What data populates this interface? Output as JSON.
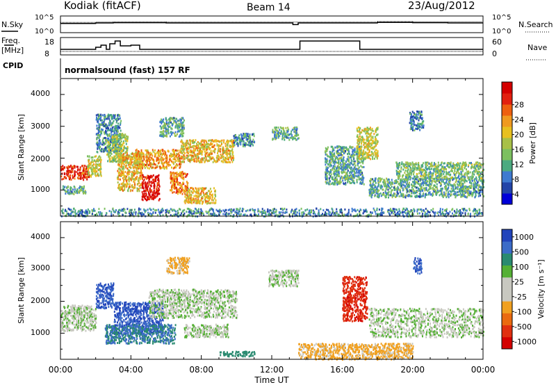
{
  "header": {
    "station": "Kodiak (fitACF)",
    "beam": "Beam 14",
    "date": "23/Aug/2012"
  },
  "summary": {
    "nsky_label": "N.Sky",
    "nsearch_label": "N.Search",
    "noise_ticks": [
      "10^5",
      "10^0"
    ],
    "freq_label_top": "Freq.",
    "freq_label_bottom": "[MHz]",
    "freq_ticks": [
      "18",
      "8"
    ],
    "nave_label": "Nave",
    "nave_ticks": [
      "60",
      "0"
    ],
    "cpid_label": "CPID",
    "cpid_text": "normalsound (fast) 157 RF"
  },
  "power_panel": {
    "ylabel": "Slant Range [km]",
    "yticks": [
      "4000",
      "3000",
      "2000",
      "1000"
    ],
    "colorbar_label": "Power [dB]",
    "colorbar_ticks": [
      "28",
      "24",
      "20",
      "16",
      "12",
      "8",
      "4"
    ],
    "colors": [
      "#0000d8",
      "#2244a8",
      "#3e7ad0",
      "#4caa80",
      "#7cc060",
      "#a8c048",
      "#e8c020",
      "#f09a20",
      "#ee6010",
      "#e22010",
      "#d40000"
    ]
  },
  "velocity_panel": {
    "ylabel": "Slant Range [km]",
    "yticks": [
      "4000",
      "3000",
      "2000",
      "1000"
    ],
    "colorbar_label": "Velocity [m s⁻¹]",
    "colorbar_ticks": [
      "1000",
      "500",
      "100",
      "25",
      "-25",
      "-100",
      "-500",
      "-1000"
    ],
    "colors": [
      "#2244bb",
      "#3c6cc8",
      "#2a8a70",
      "#55b035",
      "#c8c8c0",
      "#c8c8c0",
      "#f0a020",
      "#ea6a10",
      "#e03010",
      "#d40000"
    ]
  },
  "xaxis": {
    "label": "Time UT",
    "ticks": [
      "00:00",
      "04:00",
      "08:00",
      "12:00",
      "16:00",
      "20:00",
      "00:00"
    ]
  },
  "chart_data": {
    "type": "heatmap",
    "x_range_hours": [
      0,
      24
    ],
    "y_range_km": [
      180,
      4500
    ],
    "power_scale_db": [
      0,
      30
    ],
    "velocity_scale_ms": [
      -1000,
      1000
    ],
    "noise_sky_log10": {
      "x": [
        0,
        2,
        3,
        6,
        9,
        12,
        13.2,
        13.5,
        16,
        18,
        20,
        22,
        24
      ],
      "y": [
        2.8,
        3.0,
        3.1,
        3.0,
        3.0,
        3.0,
        2.4,
        3.0,
        3.0,
        3.2,
        3.1,
        3.0,
        3.0
      ]
    },
    "noise_search_log10": {
      "x": [
        0,
        2,
        3,
        6,
        9,
        12,
        16,
        18,
        20,
        24
      ],
      "y": [
        3.2,
        3.3,
        3.4,
        3.3,
        3.3,
        3.3,
        3.3,
        3.5,
        3.4,
        3.3
      ]
    },
    "frequency_mhz": {
      "x": [
        0,
        1.8,
        2.0,
        2.3,
        2.6,
        2.8,
        3.1,
        3.4,
        4.0,
        4.5,
        7.0,
        13.3,
        13.6,
        17.0,
        24
      ],
      "y": [
        11,
        11,
        12.5,
        14,
        11,
        15,
        17,
        13.5,
        14,
        11,
        11,
        11,
        17,
        11,
        11
      ]
    },
    "nave": {
      "x": [
        0,
        24
      ],
      "y": [
        9,
        9
      ]
    },
    "power_regions": [
      {
        "t0": 0.0,
        "t1": 1.6,
        "r0": 1350,
        "r1": 1800,
        "power_db": 26
      },
      {
        "t0": 0.1,
        "t1": 1.4,
        "r0": 900,
        "r1": 1150,
        "power_db": 10
      },
      {
        "t0": 1.5,
        "t1": 2.3,
        "r0": 1450,
        "r1": 2100,
        "power_db": 16
      },
      {
        "t0": 2.0,
        "t1": 3.4,
        "r0": 2200,
        "r1": 3400,
        "power_db": 8
      },
      {
        "t0": 2.6,
        "t1": 3.8,
        "r0": 1900,
        "r1": 2800,
        "power_db": 14
      },
      {
        "t0": 3.2,
        "t1": 4.6,
        "r0": 1000,
        "r1": 2200,
        "power_db": 18
      },
      {
        "t0": 4.6,
        "t1": 5.6,
        "r0": 700,
        "r1": 1500,
        "power_db": 28
      },
      {
        "t0": 4.2,
        "t1": 6.8,
        "r0": 1700,
        "r1": 2300,
        "power_db": 20
      },
      {
        "t0": 5.6,
        "t1": 7.0,
        "r0": 2700,
        "r1": 3300,
        "power_db": 10
      },
      {
        "t0": 6.2,
        "t1": 7.2,
        "r0": 900,
        "r1": 1600,
        "power_db": 22
      },
      {
        "t0": 7.0,
        "t1": 8.8,
        "r0": 600,
        "r1": 1100,
        "power_db": 18
      },
      {
        "t0": 6.8,
        "t1": 9.8,
        "r0": 1900,
        "r1": 2600,
        "power_db": 18
      },
      {
        "t0": 9.8,
        "t1": 11.0,
        "r0": 2400,
        "r1": 2800,
        "power_db": 8
      },
      {
        "t0": 12.0,
        "t1": 13.5,
        "r0": 2600,
        "r1": 3000,
        "power_db": 10
      },
      {
        "t0": 15.0,
        "t1": 17.2,
        "r0": 1200,
        "r1": 2400,
        "power_db": 10
      },
      {
        "t0": 16.8,
        "t1": 18.0,
        "r0": 2000,
        "r1": 3000,
        "power_db": 16
      },
      {
        "t0": 17.5,
        "t1": 24.0,
        "r0": 800,
        "r1": 1400,
        "power_db": 10
      },
      {
        "t0": 19.0,
        "t1": 24.0,
        "r0": 1400,
        "r1": 1900,
        "power_db": 12
      },
      {
        "t0": 19.8,
        "t1": 20.6,
        "r0": 2900,
        "r1": 3500,
        "power_db": 8
      },
      {
        "t0": 0.0,
        "t1": 24.0,
        "r0": 200,
        "r1": 450,
        "power_db": 8
      }
    ],
    "velocity_regions": [
      {
        "t0": 0.0,
        "t1": 2.0,
        "r0": 1100,
        "r1": 1900,
        "velocity_ms": 0
      },
      {
        "t0": 2.0,
        "t1": 3.0,
        "r0": 1800,
        "r1": 2600,
        "velocity_ms": 700
      },
      {
        "t0": 3.0,
        "t1": 5.8,
        "r0": 1000,
        "r1": 2000,
        "velocity_ms": 700
      },
      {
        "t0": 2.5,
        "t1": 6.5,
        "r0": 700,
        "r1": 1300,
        "velocity_ms": 300
      },
      {
        "t0": 6.0,
        "t1": 7.3,
        "r0": 2900,
        "r1": 3400,
        "velocity_ms": -150
      },
      {
        "t0": 5.0,
        "t1": 10.0,
        "r0": 1500,
        "r1": 2400,
        "velocity_ms": 0
      },
      {
        "t0": 7.0,
        "t1": 9.5,
        "r0": 900,
        "r1": 1300,
        "velocity_ms": 0
      },
      {
        "t0": 9.0,
        "t1": 11.0,
        "r0": 300,
        "r1": 450,
        "velocity_ms": 200
      },
      {
        "t0": 11.8,
        "t1": 13.5,
        "r0": 2500,
        "r1": 3000,
        "velocity_ms": 0
      },
      {
        "t0": 13.5,
        "t1": 20.0,
        "r0": 200,
        "r1": 700,
        "velocity_ms": -150
      },
      {
        "t0": 16.0,
        "t1": 17.4,
        "r0": 1400,
        "r1": 2800,
        "velocity_ms": -800
      },
      {
        "t0": 17.5,
        "t1": 24.0,
        "r0": 900,
        "r1": 1800,
        "velocity_ms": 0
      },
      {
        "t0": 20.0,
        "t1": 20.5,
        "r0": 2900,
        "r1": 3400,
        "velocity_ms": 700
      }
    ]
  }
}
